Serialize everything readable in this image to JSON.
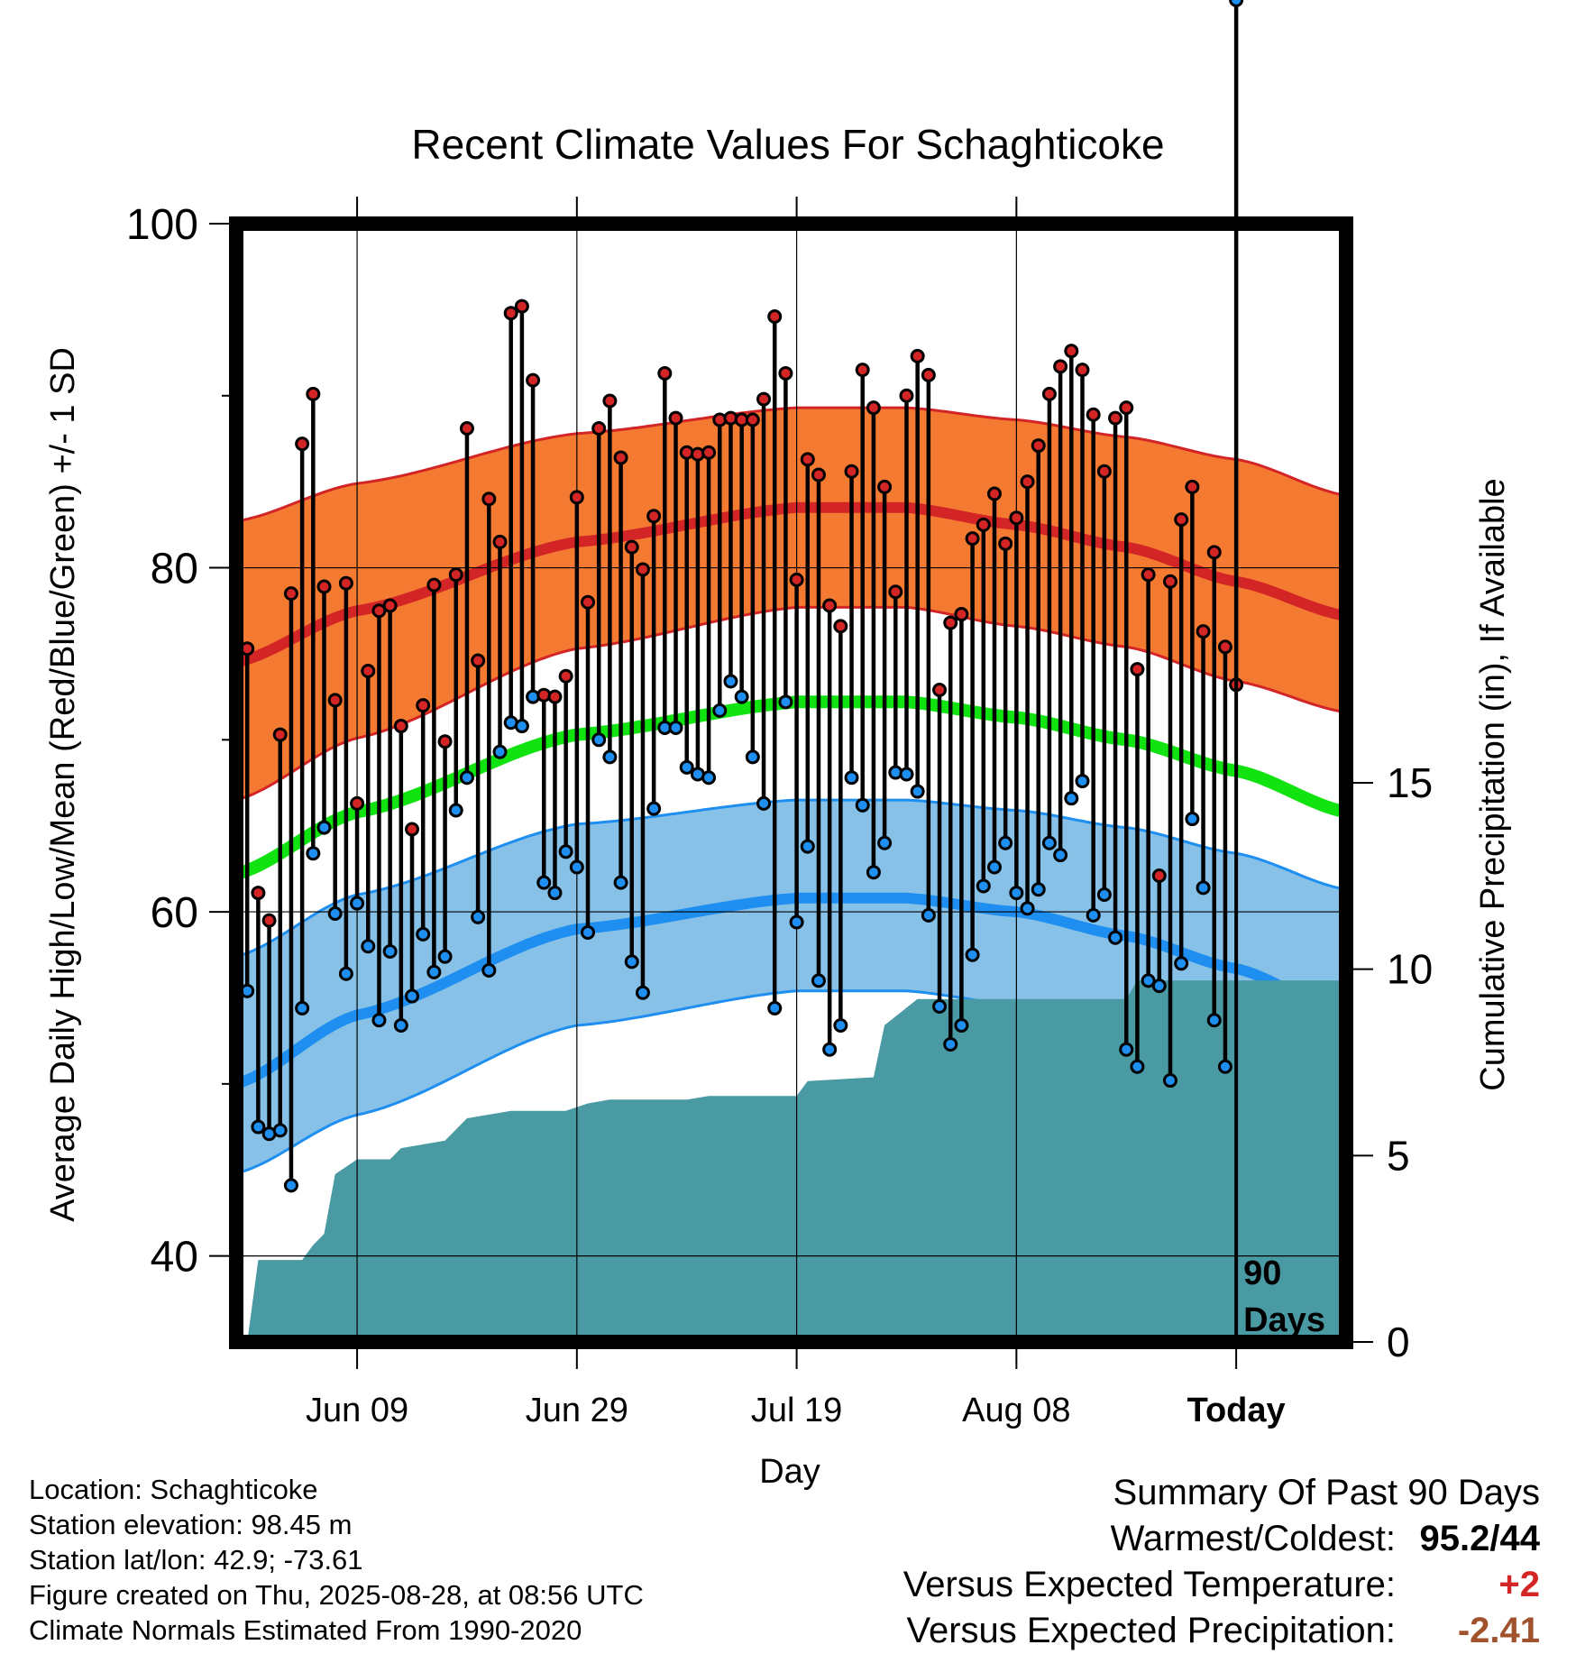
{
  "chart_data": {
    "type": "line",
    "title": "Recent Climate Values For Schaghticoke",
    "xlabel": "Day",
    "ylabel": "Average Daily High/Low/Mean (Red/Blue/Green) +/- 1 SD",
    "y2label": "Cumulative Precipitation (in), If Available",
    "ylim": [
      35,
      100
    ],
    "y_ticks": [
      "40",
      "60",
      "80",
      "100"
    ],
    "y2lim": [
      0,
      30
    ],
    "y2_ticks": [
      "0",
      "5",
      "10",
      "15"
    ],
    "x_ticks": [
      "Jun 09",
      "Jun 29",
      "Jul 19",
      "Aug 08",
      "Today"
    ],
    "x_tick_days": [
      10,
      30,
      50,
      70,
      90
    ],
    "xlim": [
      -1,
      100
    ],
    "period_label": "90\nDays",
    "grid": true,
    "daily_high": [
      75.3,
      61.1,
      59.5,
      70.3,
      78.5,
      87.2,
      90.1,
      78.9,
      72.3,
      79.1,
      66.3,
      74.0,
      77.5,
      77.8,
      70.8,
      64.8,
      72.0,
      79.0,
      69.9,
      79.6,
      88.1,
      74.6,
      84.0,
      81.5,
      94.8,
      95.2,
      90.9,
      72.6,
      72.5,
      73.7,
      84.1,
      78.0,
      88.1,
      89.7,
      86.4,
      81.2,
      79.9,
      83.0,
      91.3,
      88.7,
      86.7,
      86.6,
      86.7,
      88.6,
      88.7,
      88.6,
      88.6,
      89.8,
      94.6,
      91.3,
      79.3,
      86.3,
      85.4,
      77.8,
      76.6,
      85.6,
      91.5,
      89.3,
      84.7,
      78.6,
      90.0,
      92.3,
      91.2,
      72.9,
      76.8,
      77.3,
      81.7,
      82.5,
      84.3,
      81.4,
      82.9,
      85.0,
      87.1,
      90.1,
      91.7,
      92.6,
      91.5,
      88.9,
      85.6,
      88.7,
      89.3,
      74.1,
      79.6,
      62.1,
      79.2,
      82.8,
      84.7,
      76.3,
      80.9,
      75.4,
      73.2
    ],
    "daily_low": [
      55.4,
      47.5,
      47.1,
      47.3,
      44.1,
      54.4,
      63.4,
      64.9,
      59.9,
      56.4,
      60.5,
      58.0,
      53.7,
      57.7,
      53.4,
      55.1,
      58.7,
      56.5,
      57.4,
      65.9,
      67.8,
      59.7,
      56.6,
      69.3,
      71.0,
      70.8,
      72.5,
      61.7,
      61.1,
      63.5,
      62.6,
      58.8,
      70.0,
      69.0,
      61.7,
      57.1,
      55.3,
      66.0,
      70.7,
      70.7,
      68.4,
      68.0,
      67.8,
      71.7,
      73.4,
      72.5,
      69.0,
      66.3,
      54.4,
      72.2,
      59.4,
      63.8,
      56.0,
      52.0,
      53.4,
      67.8,
      66.2,
      62.3,
      64.0,
      68.1,
      68.0,
      67.0,
      59.8,
      54.5,
      52.3,
      53.4,
      57.5,
      61.5,
      62.6,
      64.0,
      61.1,
      60.2,
      61.3,
      64.0,
      63.3,
      66.6,
      67.6,
      59.8,
      61.0,
      58.5,
      52.0,
      51.0,
      56.0,
      55.7,
      50.2,
      57.0,
      65.4,
      61.4,
      53.7,
      51.0
    ],
    "normal_high": [
      {
        "day": -1,
        "v": 74.5
      },
      {
        "day": 10,
        "v": 77.5
      },
      {
        "day": 30,
        "v": 81.5
      },
      {
        "day": 50,
        "v": 83.5
      },
      {
        "day": 60,
        "v": 83.5
      },
      {
        "day": 70,
        "v": 82.5
      },
      {
        "day": 80,
        "v": 81.2
      },
      {
        "day": 90,
        "v": 79.2
      },
      {
        "day": 100,
        "v": 77.2
      }
    ],
    "normal_high_sd_upper": [
      {
        "day": -1,
        "v": 82.7
      },
      {
        "day": 10,
        "v": 84.9
      },
      {
        "day": 30,
        "v": 87.8
      },
      {
        "day": 50,
        "v": 89.3
      },
      {
        "day": 60,
        "v": 89.3
      },
      {
        "day": 70,
        "v": 88.6
      },
      {
        "day": 80,
        "v": 87.6
      },
      {
        "day": 90,
        "v": 86.3
      },
      {
        "day": 100,
        "v": 84.2
      }
    ],
    "normal_high_sd_lower": [
      {
        "day": -1,
        "v": 66.5
      },
      {
        "day": 10,
        "v": 70.1
      },
      {
        "day": 30,
        "v": 75.3
      },
      {
        "day": 50,
        "v": 77.7
      },
      {
        "day": 60,
        "v": 77.7
      },
      {
        "day": 70,
        "v": 76.6
      },
      {
        "day": 80,
        "v": 75.4
      },
      {
        "day": 90,
        "v": 73.4
      },
      {
        "day": 100,
        "v": 71.6
      }
    ],
    "normal_mean": [
      {
        "day": -1,
        "v": 62.2
      },
      {
        "day": 10,
        "v": 65.8
      },
      {
        "day": 30,
        "v": 70.3
      },
      {
        "day": 50,
        "v": 72.2
      },
      {
        "day": 60,
        "v": 72.2
      },
      {
        "day": 70,
        "v": 71.3
      },
      {
        "day": 80,
        "v": 70.0
      },
      {
        "day": 90,
        "v": 68.2
      },
      {
        "day": 100,
        "v": 65.8
      }
    ],
    "normal_low": [
      {
        "day": -1,
        "v": 50.0
      },
      {
        "day": 10,
        "v": 54.0
      },
      {
        "day": 30,
        "v": 59.0
      },
      {
        "day": 50,
        "v": 60.8
      },
      {
        "day": 60,
        "v": 60.8
      },
      {
        "day": 70,
        "v": 60.0
      },
      {
        "day": 80,
        "v": 58.6
      },
      {
        "day": 90,
        "v": 56.7
      },
      {
        "day": 100,
        "v": 54.0
      }
    ],
    "normal_low_sd_upper": [
      {
        "day": -1,
        "v": 57.4
      },
      {
        "day": 10,
        "v": 61.0
      },
      {
        "day": 30,
        "v": 65.1
      },
      {
        "day": 50,
        "v": 66.5
      },
      {
        "day": 60,
        "v": 66.5
      },
      {
        "day": 70,
        "v": 65.9
      },
      {
        "day": 80,
        "v": 64.9
      },
      {
        "day": 90,
        "v": 63.4
      },
      {
        "day": 100,
        "v": 61.3
      }
    ],
    "normal_low_sd_lower": [
      {
        "day": -1,
        "v": 44.8
      },
      {
        "day": 10,
        "v": 48.2
      },
      {
        "day": 30,
        "v": 53.4
      },
      {
        "day": 50,
        "v": 55.4
      },
      {
        "day": 60,
        "v": 55.4
      },
      {
        "day": 70,
        "v": 54.6
      },
      {
        "day": 80,
        "v": 53.0
      },
      {
        "day": 90,
        "v": 50.7
      },
      {
        "day": 100,
        "v": 47.8
      }
    ],
    "cumulative_precip": [
      {
        "day": 0,
        "v": 0
      },
      {
        "day": 1,
        "v": 2.2
      },
      {
        "day": 5,
        "v": 2.2
      },
      {
        "day": 6,
        "v": 2.6
      },
      {
        "day": 7,
        "v": 2.9
      },
      {
        "day": 8,
        "v": 4.5
      },
      {
        "day": 10,
        "v": 4.9
      },
      {
        "day": 13,
        "v": 4.9
      },
      {
        "day": 14,
        "v": 5.2
      },
      {
        "day": 18,
        "v": 5.4
      },
      {
        "day": 20,
        "v": 6.0
      },
      {
        "day": 24,
        "v": 6.2
      },
      {
        "day": 29,
        "v": 6.2
      },
      {
        "day": 31,
        "v": 6.4
      },
      {
        "day": 33,
        "v": 6.5
      },
      {
        "day": 40,
        "v": 6.5
      },
      {
        "day": 42,
        "v": 6.6
      },
      {
        "day": 50,
        "v": 6.6
      },
      {
        "day": 51,
        "v": 7.0
      },
      {
        "day": 57,
        "v": 7.1
      },
      {
        "day": 58,
        "v": 8.5
      },
      {
        "day": 61,
        "v": 9.2
      },
      {
        "day": 70,
        "v": 9.2
      },
      {
        "day": 80,
        "v": 9.2
      },
      {
        "day": 81,
        "v": 9.7
      },
      {
        "day": 100,
        "v": 9.7
      }
    ]
  },
  "footer": {
    "location": "Location: Schaghticoke",
    "elevation": "Station elevation: 98.45 m",
    "latlon": "Station lat/lon: 42.9; -73.61",
    "created": "Figure created on Thu, 2025-08-28, at 08:56 UTC",
    "normals": "Climate Normals Estimated From 1990-2020"
  },
  "summary": {
    "title": "Summary Of Past 90 Days",
    "warmest_coldest_label": "Warmest/Coldest:",
    "warmest_value": "95.2",
    "coldest_value": "/44",
    "temp_label": "Versus Expected Temperature:",
    "temp_value": "+2",
    "precip_label": "Versus Expected Precipitation:",
    "precip_value": "-2.41"
  },
  "colors": {
    "high_band": "#f47a32",
    "high_line": "#d32426",
    "high_band_edge": "#d32426",
    "mean_line": "#11e311",
    "low_band": "#87c1e8",
    "low_line": "#1e8ff0",
    "precip_fill": "#4a9aa4",
    "high_dot": "#d32426",
    "low_dot": "#1e8ff0",
    "temp_value": "#d32426",
    "precip_value": "#a0522d"
  }
}
